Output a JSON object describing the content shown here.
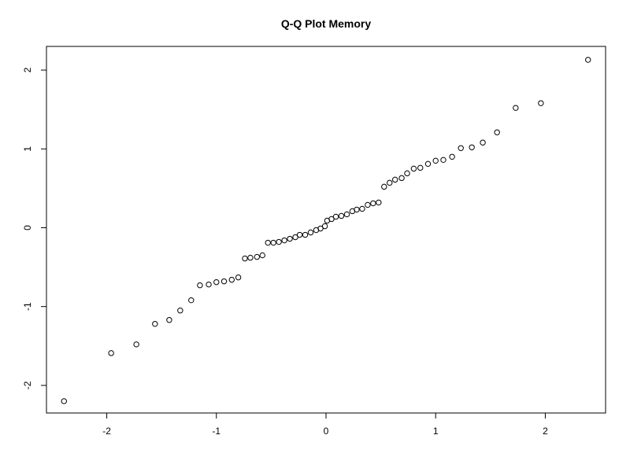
{
  "chart_data": {
    "type": "scatter",
    "title": "Q-Q Plot Memory",
    "xlabel": "",
    "ylabel": "",
    "xlim": [
      -2.55,
      2.55
    ],
    "ylim": [
      -2.35,
      2.3
    ],
    "x_ticks": [
      -2,
      -1,
      0,
      1,
      2
    ],
    "y_ticks": [
      -2,
      -1,
      0,
      1,
      2
    ],
    "grid": false,
    "legend": "none",
    "point_color": "#000000",
    "points": [
      {
        "x": -2.39,
        "y": -2.2
      },
      {
        "x": -1.96,
        "y": -1.59
      },
      {
        "x": -1.73,
        "y": -1.48
      },
      {
        "x": -1.56,
        "y": -1.22
      },
      {
        "x": -1.43,
        "y": -1.17
      },
      {
        "x": -1.33,
        "y": -1.05
      },
      {
        "x": -1.23,
        "y": -0.92
      },
      {
        "x": -1.15,
        "y": -0.73
      },
      {
        "x": -1.07,
        "y": -0.72
      },
      {
        "x": -1.0,
        "y": -0.69
      },
      {
        "x": -0.93,
        "y": -0.68
      },
      {
        "x": -0.86,
        "y": -0.66
      },
      {
        "x": -0.8,
        "y": -0.63
      },
      {
        "x": -0.74,
        "y": -0.39
      },
      {
        "x": -0.69,
        "y": -0.38
      },
      {
        "x": -0.63,
        "y": -0.37
      },
      {
        "x": -0.58,
        "y": -0.35
      },
      {
        "x": -0.53,
        "y": -0.19
      },
      {
        "x": -0.48,
        "y": -0.19
      },
      {
        "x": -0.43,
        "y": -0.18
      },
      {
        "x": -0.38,
        "y": -0.16
      },
      {
        "x": -0.33,
        "y": -0.14
      },
      {
        "x": -0.28,
        "y": -0.12
      },
      {
        "x": -0.24,
        "y": -0.09
      },
      {
        "x": -0.19,
        "y": -0.09
      },
      {
        "x": -0.14,
        "y": -0.06
      },
      {
        "x": -0.09,
        "y": -0.03
      },
      {
        "x": -0.05,
        "y": -0.01
      },
      {
        "x": -0.01,
        "y": 0.02
      },
      {
        "x": 0.01,
        "y": 0.09
      },
      {
        "x": 0.05,
        "y": 0.11
      },
      {
        "x": 0.09,
        "y": 0.14
      },
      {
        "x": 0.14,
        "y": 0.15
      },
      {
        "x": 0.19,
        "y": 0.17
      },
      {
        "x": 0.24,
        "y": 0.21
      },
      {
        "x": 0.28,
        "y": 0.23
      },
      {
        "x": 0.33,
        "y": 0.24
      },
      {
        "x": 0.38,
        "y": 0.29
      },
      {
        "x": 0.43,
        "y": 0.31
      },
      {
        "x": 0.48,
        "y": 0.32
      },
      {
        "x": 0.53,
        "y": 0.52
      },
      {
        "x": 0.58,
        "y": 0.57
      },
      {
        "x": 0.63,
        "y": 0.61
      },
      {
        "x": 0.69,
        "y": 0.63
      },
      {
        "x": 0.74,
        "y": 0.69
      },
      {
        "x": 0.8,
        "y": 0.75
      },
      {
        "x": 0.86,
        "y": 0.76
      },
      {
        "x": 0.93,
        "y": 0.81
      },
      {
        "x": 1.0,
        "y": 0.85
      },
      {
        "x": 1.07,
        "y": 0.86
      },
      {
        "x": 1.15,
        "y": 0.9
      },
      {
        "x": 1.23,
        "y": 1.01
      },
      {
        "x": 1.33,
        "y": 1.02
      },
      {
        "x": 1.43,
        "y": 1.08
      },
      {
        "x": 1.56,
        "y": 1.21
      },
      {
        "x": 1.73,
        "y": 1.52
      },
      {
        "x": 1.96,
        "y": 1.58
      },
      {
        "x": 2.39,
        "y": 2.13
      }
    ]
  }
}
